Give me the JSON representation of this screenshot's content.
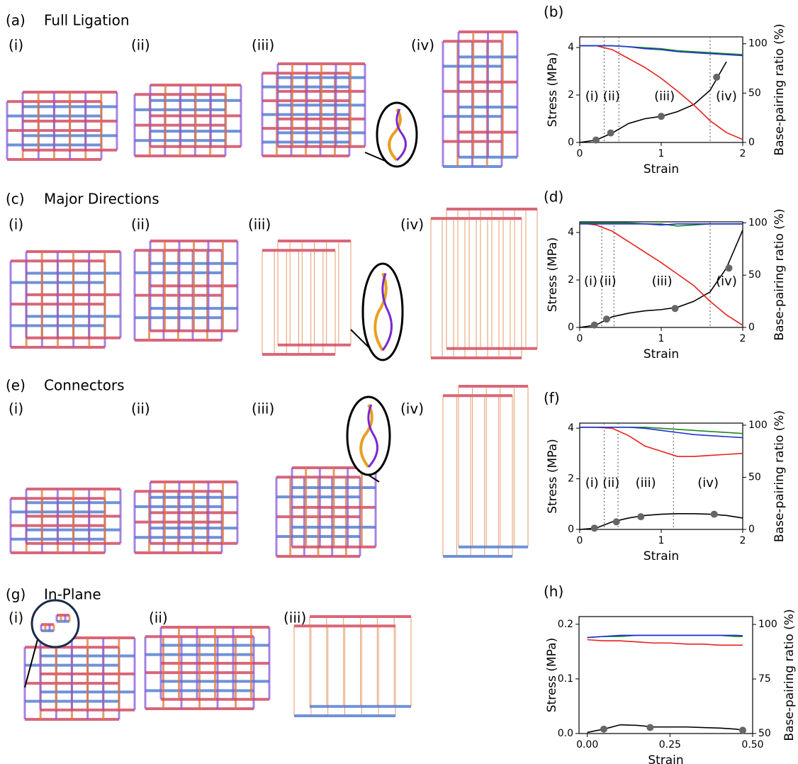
{
  "rows": [
    {
      "label": "(a)",
      "title": "Full Ligation",
      "stages": [
        "(i)",
        "(ii)",
        "(iii)",
        "(iv)"
      ]
    },
    {
      "label": "(c)",
      "title": "Major Directions",
      "stages": [
        "(i)",
        "(ii)",
        "(iii)",
        "(iv)"
      ]
    },
    {
      "label": "(e)",
      "title": "Connectors",
      "stages": [
        "(i)",
        "(ii)",
        "(iii)",
        "(iv)"
      ]
    },
    {
      "label": "(g)",
      "title": "In-Plane",
      "stages": [
        "(i)",
        "(ii)",
        "(iii)"
      ]
    }
  ],
  "chart_data": [
    {
      "type": "line",
      "panel": "(b)",
      "xlabel": "Strain",
      "ylabel": "Stress (MPa)",
      "y2label": "Base-pairing ratio (%)",
      "xlim": [
        0,
        2
      ],
      "xticks": [
        0,
        1,
        2
      ],
      "ylim": [
        0,
        4.45
      ],
      "yticks": [
        0,
        2,
        4
      ],
      "y2lim": [
        0,
        107
      ],
      "y2ticks": [
        0,
        50,
        100
      ],
      "vlines": [
        0.3,
        0.48,
        1.6
      ],
      "annotations": [
        "(i)",
        "(ii)",
        "(iii)",
        "(iv)"
      ],
      "x": [
        0,
        0.2,
        0.4,
        0.6,
        0.8,
        1.0,
        1.2,
        1.4,
        1.6,
        1.8,
        2.0
      ],
      "series": [
        {
          "color": "#000000",
          "values": [
            0,
            0.1,
            0.4,
            0.8,
            1.0,
            1.1,
            1.3,
            1.6,
            2.2,
            3.4,
            null
          ]
        },
        {
          "color": "#e8211d",
          "axis": "y2",
          "values": [
            98,
            98,
            94,
            85,
            76,
            65,
            52,
            38,
            22,
            10,
            3
          ]
        },
        {
          "color": "#1a8a1a",
          "axis": "y2",
          "values": [
            98,
            98,
            98,
            97,
            96,
            95,
            93,
            92,
            91,
            90,
            89
          ]
        },
        {
          "color": "#1f2fd6",
          "axis": "y2",
          "values": [
            98,
            98,
            98,
            97,
            95,
            94,
            92,
            91,
            90,
            89,
            88
          ]
        }
      ],
      "points": {
        "color": "#666666",
        "x": [
          0.2,
          0.38,
          1.0,
          1.68
        ],
        "values": [
          0.1,
          0.4,
          1.1,
          2.75
        ]
      }
    },
    {
      "type": "line",
      "panel": "(d)",
      "xlabel": "Strain",
      "ylabel": "Stress (MPa)",
      "y2label": "Base-pairing ratio (%)",
      "xlim": [
        0,
        2
      ],
      "xticks": [
        0,
        1,
        2
      ],
      "ylim": [
        0,
        4.45
      ],
      "yticks": [
        0,
        2,
        4
      ],
      "y2lim": [
        0,
        101
      ],
      "y2ticks": [
        0,
        50,
        100
      ],
      "vlines": [
        0.27,
        0.42,
        1.6
      ],
      "annotations": [
        "(i)",
        "(ii)",
        "(iii)",
        "(iv)"
      ],
      "x": [
        0,
        0.2,
        0.4,
        0.6,
        0.8,
        1.0,
        1.2,
        1.4,
        1.6,
        1.8,
        2.0
      ],
      "series": [
        {
          "color": "#000000",
          "values": [
            0,
            0.1,
            0.45,
            0.6,
            0.7,
            0.75,
            0.85,
            1.1,
            1.5,
            2.5,
            4.1
          ]
        },
        {
          "color": "#e8211d",
          "axis": "y2",
          "values": [
            100,
            98,
            92,
            82,
            72,
            62,
            51,
            40,
            25,
            12,
            2
          ]
        },
        {
          "color": "#1a8a1a",
          "axis": "y2",
          "values": [
            100,
            100,
            100,
            100,
            99,
            99,
            97,
            98,
            99,
            99,
            99
          ]
        },
        {
          "color": "#1f2fd6",
          "axis": "y2",
          "values": [
            99,
            99,
            99,
            99,
            99,
            98,
            99,
            99,
            99,
            99,
            99
          ]
        }
      ],
      "points": {
        "color": "#666666",
        "x": [
          0.18,
          0.33,
          1.17,
          1.83
        ],
        "values": [
          0.1,
          0.35,
          0.8,
          2.5
        ]
      }
    },
    {
      "type": "line",
      "panel": "(f)",
      "xlabel": "Strain",
      "ylabel": "Stress (MPa)",
      "y2label": "Base-pairing ratio (%)",
      "xlim": [
        0,
        2
      ],
      "xticks": [
        0,
        1,
        2
      ],
      "ylim": [
        0,
        4.2
      ],
      "yticks": [
        0,
        2,
        4
      ],
      "y2lim": [
        0,
        102
      ],
      "y2ticks": [
        0,
        50,
        100
      ],
      "vlines": [
        0.3,
        0.47,
        1.15
      ],
      "annotations": [
        "(i)",
        "(ii)",
        "(iii)",
        "(iv)"
      ],
      "x": [
        0,
        0.2,
        0.4,
        0.6,
        0.8,
        1.0,
        1.2,
        1.4,
        1.6,
        1.8,
        2.0
      ],
      "series": [
        {
          "color": "#000000",
          "values": [
            0,
            0.05,
            0.3,
            0.45,
            0.55,
            0.6,
            0.62,
            0.62,
            0.6,
            0.55,
            0.45
          ]
        },
        {
          "color": "#e8211d",
          "axis": "y2",
          "values": [
            98,
            98,
            97,
            90,
            80,
            75,
            70,
            70,
            71,
            72,
            73
          ]
        },
        {
          "color": "#1a8a1a",
          "axis": "y2",
          "values": [
            98,
            98,
            98,
            98,
            98,
            97,
            96,
            95,
            94,
            93,
            92
          ]
        },
        {
          "color": "#1f2fd6",
          "axis": "y2",
          "values": [
            98,
            98,
            98,
            98,
            97,
            95,
            93,
            91,
            90,
            89,
            88
          ]
        }
      ],
      "points": {
        "color": "#666666",
        "x": [
          0.18,
          0.45,
          0.75,
          1.65
        ],
        "values": [
          0.05,
          0.3,
          0.5,
          0.6
        ]
      }
    },
    {
      "type": "line",
      "panel": "(h)",
      "xlabel": "Strain",
      "ylabel": "Stress (MPa)",
      "y2label": "Base-pairing ratio (%)",
      "xlim": [
        -0.025,
        0.5
      ],
      "xticks": [
        {
          "value": 0,
          "label": "0.00"
        },
        {
          "value": 0.25,
          "label": "0.25"
        },
        {
          "value": 0.5,
          "label": "0.50"
        }
      ],
      "ylim": [
        0,
        0.214
      ],
      "yticks": [
        {
          "value": 0,
          "label": "0.0"
        },
        0.1,
        0.2
      ],
      "y2lim": [
        50,
        103.6
      ],
      "y2ticks": [
        50,
        75,
        100
      ],
      "x": [
        0,
        0.05,
        0.1,
        0.15,
        0.2,
        0.25,
        0.3,
        0.35,
        0.4,
        0.45,
        0.47
      ],
      "series": [
        {
          "color": "#000000",
          "values": [
            0.002,
            0.008,
            0.016,
            0.015,
            0.012,
            0.012,
            0.012,
            0.011,
            0.01,
            0.008,
            0.006
          ]
        },
        {
          "color": "#e8211d",
          "axis": "y2",
          "values": [
            93,
            92.5,
            92.5,
            92,
            91.5,
            91.5,
            91,
            91,
            90.5,
            90.5,
            90.5
          ]
        },
        {
          "color": "#1a8a1a",
          "axis": "y2",
          "values": [
            94,
            94.5,
            94.5,
            95,
            95,
            95,
            95,
            95,
            95,
            94.5,
            94.5
          ]
        },
        {
          "color": "#1f2fd6",
          "axis": "y2",
          "values": [
            94,
            94.5,
            95,
            95,
            95,
            95,
            95,
            95,
            95,
            95,
            94.8
          ]
        }
      ],
      "points": {
        "color": "#666666",
        "x": [
          0.05,
          0.19,
          0.47
        ],
        "values": [
          0.008,
          0.011,
          0.006
        ]
      }
    }
  ]
}
